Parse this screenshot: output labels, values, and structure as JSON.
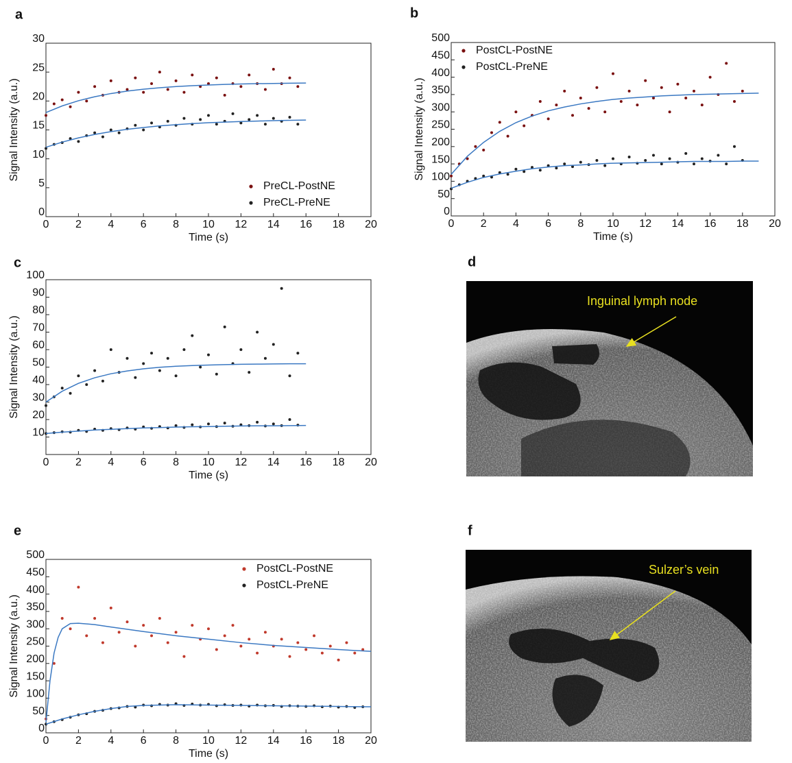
{
  "chart_data": [
    {
      "type": "scatter",
      "panel": "a",
      "xlabel": "Time (s)",
      "ylabel": "Signal Intensity (a.u.)",
      "xlim": [
        0,
        20
      ],
      "ylim": [
        0,
        30
      ],
      "xticks": [
        0,
        2,
        4,
        6,
        8,
        10,
        12,
        14,
        16,
        18,
        20
      ],
      "yticks": [
        0,
        5,
        10,
        15,
        20,
        25,
        30
      ],
      "legend": "lower right",
      "series": [
        {
          "name": "PreCL-PostNE",
          "color": "#7a1010",
          "x": [
            0,
            0.5,
            1,
            1.5,
            2,
            2.5,
            3,
            3.5,
            4,
            4.5,
            5,
            5.5,
            6,
            6.5,
            7,
            7.5,
            8,
            8.5,
            9,
            9.5,
            10,
            10.5,
            11,
            11.5,
            12,
            12.5,
            13,
            13.5,
            14,
            14.5,
            15,
            15.5
          ],
          "values": [
            17.5,
            19.5,
            20.2,
            19,
            21.5,
            20,
            22.5,
            21,
            23.5,
            21.5,
            22,
            24,
            21.5,
            23,
            25,
            22,
            23.5,
            21.5,
            24.5,
            22.5,
            23,
            24,
            21,
            23,
            22.5,
            24.5,
            23,
            22,
            25.5,
            23,
            24,
            22.5
          ]
        },
        {
          "name": "PreCL-PreNE",
          "color": "#222222",
          "x": [
            0,
            0.5,
            1,
            1.5,
            2,
            2.5,
            3,
            3.5,
            4,
            4.5,
            5,
            5.5,
            6,
            6.5,
            7,
            7.5,
            8,
            8.5,
            9,
            9.5,
            10,
            10.5,
            11,
            11.5,
            12,
            12.5,
            13,
            13.5,
            14,
            14.5,
            15,
            15.5
          ],
          "values": [
            11.8,
            12.5,
            12.8,
            13.5,
            13,
            14,
            14.5,
            13.8,
            15,
            14.5,
            15.2,
            15.8,
            15,
            16.2,
            15.5,
            16.5,
            15.8,
            17,
            16,
            16.8,
            17.5,
            16,
            16.5,
            17.8,
            16.2,
            16.8,
            17.5,
            16,
            17,
            16.5,
            17.2,
            16
          ]
        },
        {
          "type": "line",
          "color": "#3a78c2",
          "x": [
            0,
            1,
            2,
            3,
            4,
            5,
            6,
            7,
            8,
            9,
            10,
            11,
            12,
            13,
            14,
            15,
            16
          ],
          "values": [
            18.0,
            19.15,
            20.05,
            20.74,
            21.29,
            21.71,
            22.04,
            22.29,
            22.5,
            22.65,
            22.77,
            22.87,
            22.94,
            23.0,
            23.04,
            23.08,
            23.11
          ]
        },
        {
          "type": "line",
          "color": "#3a78c2",
          "x": [
            0,
            1,
            2,
            3,
            4,
            5,
            6,
            7,
            8,
            9,
            10,
            11,
            12,
            13,
            14,
            15,
            16
          ],
          "values": [
            12.0,
            12.89,
            13.62,
            14.21,
            14.7,
            15.1,
            15.42,
            15.69,
            15.91,
            16.09,
            16.24,
            16.35,
            16.45,
            16.53,
            16.6,
            16.66,
            16.7
          ]
        }
      ]
    },
    {
      "type": "scatter",
      "panel": "b",
      "xlabel": "Time (s)",
      "ylabel": "Signal Intensity (a.u.)",
      "xlim": [
        0,
        20
      ],
      "ylim": [
        0,
        500
      ],
      "xticks": [
        0,
        2,
        4,
        6,
        8,
        10,
        12,
        14,
        16,
        18,
        20
      ],
      "yticks": [
        0,
        50,
        100,
        150,
        200,
        250,
        300,
        350,
        400,
        450,
        500
      ],
      "legend": "upper left",
      "series": [
        {
          "name": "PostCL-PostNE",
          "color": "#7a1010",
          "x": [
            0,
            0.5,
            1,
            1.5,
            2,
            2.5,
            3,
            3.5,
            4,
            4.5,
            5,
            5.5,
            6,
            6.5,
            7,
            7.5,
            8,
            8.5,
            9,
            9.5,
            10,
            10.5,
            11,
            11.5,
            12,
            12.5,
            13,
            13.5,
            14,
            14.5,
            15,
            15.5,
            16,
            16.5,
            17,
            17.5,
            18
          ],
          "values": [
            115,
            150,
            165,
            200,
            190,
            240,
            270,
            230,
            300,
            260,
            290,
            330,
            280,
            320,
            360,
            290,
            340,
            310,
            370,
            300,
            410,
            330,
            360,
            320,
            390,
            340,
            370,
            300,
            380,
            340,
            360,
            320,
            400,
            350,
            440,
            330,
            360
          ]
        },
        {
          "name": "PostCL-PreNE",
          "color": "#222222",
          "x": [
            0,
            0.5,
            1,
            1.5,
            2,
            2.5,
            3,
            3.5,
            4,
            4.5,
            5,
            5.5,
            6,
            6.5,
            7,
            7.5,
            8,
            8.5,
            9,
            9.5,
            10,
            10.5,
            11,
            11.5,
            12,
            12.5,
            13,
            13.5,
            14,
            14.5,
            15,
            15.5,
            16,
            16.5,
            17,
            17.5,
            18
          ],
          "values": [
            78,
            90,
            100,
            108,
            115,
            112,
            125,
            120,
            135,
            128,
            140,
            132,
            145,
            138,
            150,
            142,
            155,
            148,
            160,
            145,
            165,
            150,
            170,
            152,
            160,
            175,
            150,
            165,
            155,
            180,
            150,
            165,
            158,
            175,
            150,
            200,
            160
          ]
        },
        {
          "type": "line",
          "color": "#3a78c2",
          "x": [
            0,
            1,
            2,
            3,
            4,
            5,
            6,
            7,
            8,
            9,
            10,
            11,
            12,
            13,
            14,
            15,
            16,
            17,
            18,
            19
          ],
          "values": [
            120,
            172,
            212,
            244,
            269,
            288,
            303,
            314,
            323,
            330,
            336,
            340,
            343,
            346,
            348,
            350,
            351,
            352,
            353,
            354
          ]
        },
        {
          "type": "line",
          "color": "#3a78c2",
          "x": [
            0,
            1,
            2,
            3,
            4,
            5,
            6,
            7,
            8,
            9,
            10,
            11,
            12,
            13,
            14,
            15,
            16,
            17,
            18,
            19
          ],
          "values": [
            80,
            97,
            111,
            121,
            129,
            136,
            141,
            145,
            147,
            150,
            152,
            153,
            154,
            155,
            156,
            157,
            157,
            157,
            158,
            158
          ]
        }
      ]
    },
    {
      "type": "scatter",
      "panel": "c",
      "xlabel": "Time (s)",
      "ylabel": "Signal Intensity (a.u.)",
      "xlim": [
        0,
        20
      ],
      "ylim": [
        0,
        100
      ],
      "xticks": [
        0,
        2,
        4,
        6,
        8,
        10,
        12,
        14,
        16,
        18,
        20
      ],
      "yticks": [
        10,
        20,
        30,
        40,
        50,
        60,
        70,
        80,
        90,
        100
      ],
      "series": [
        {
          "color": "#222222",
          "x": [
            0,
            0.5,
            1,
            1.5,
            2,
            2.5,
            3,
            3.5,
            4,
            4.5,
            5,
            5.5,
            6,
            6.5,
            7,
            7.5,
            8,
            8.5,
            9,
            9.5,
            10,
            10.5,
            11,
            11.5,
            12,
            12.5,
            13,
            13.5,
            14,
            14.5,
            15,
            15.5
          ],
          "values": [
            28,
            33,
            38,
            35,
            45,
            40,
            48,
            42,
            60,
            47,
            55,
            44,
            52,
            58,
            48,
            55,
            45,
            60,
            68,
            50,
            57,
            46,
            73,
            52,
            60,
            47,
            70,
            55,
            63,
            95,
            45,
            58
          ]
        },
        {
          "color": "#222222",
          "x": [
            0,
            0.5,
            1,
            1.5,
            2,
            2.5,
            3,
            3.5,
            4,
            4.5,
            5,
            5.5,
            6,
            6.5,
            7,
            7.5,
            8,
            8.5,
            9,
            9.5,
            10,
            10.5,
            11,
            11.5,
            12,
            12.5,
            13,
            13.5,
            14,
            14.5,
            15,
            15.5
          ],
          "values": [
            12,
            12.5,
            13,
            12.8,
            13.8,
            13.2,
            14.5,
            13.8,
            14.8,
            14.2,
            15.2,
            14.5,
            15.8,
            15,
            16,
            15.2,
            16.5,
            15.5,
            17,
            15.8,
            17.5,
            16,
            18,
            16.2,
            17,
            16.5,
            18.5,
            16.3,
            17.5,
            16.5,
            20,
            16.8
          ]
        },
        {
          "type": "line",
          "color": "#3a78c2",
          "x": [
            0,
            1,
            2,
            3,
            4,
            5,
            6,
            7,
            8,
            9,
            10,
            11,
            12,
            13,
            14,
            15,
            16
          ],
          "values": [
            30,
            36.2,
            40.7,
            43.9,
            46.2,
            47.8,
            49.0,
            49.9,
            50.5,
            50.9,
            51.2,
            51.4,
            51.6,
            51.7,
            51.8,
            51.9,
            51.9
          ]
        },
        {
          "type": "line",
          "color": "#3a78c2",
          "x": [
            0,
            1,
            2,
            3,
            4,
            5,
            6,
            7,
            8,
            9,
            10,
            11,
            12,
            13,
            14,
            15,
            16
          ],
          "values": [
            12,
            12.8,
            13.4,
            14.0,
            14.4,
            14.8,
            15.2,
            15.4,
            15.7,
            15.9,
            16.0,
            16.2,
            16.3,
            16.4,
            16.4,
            16.5,
            16.6
          ]
        }
      ]
    },
    {
      "type": "scatter",
      "panel": "e",
      "xlabel": "Time (s)",
      "ylabel": "Signal Intensity (a.u.)",
      "xlim": [
        0,
        20
      ],
      "ylim": [
        0,
        500
      ],
      "xticks": [
        0,
        2,
        4,
        6,
        8,
        10,
        12,
        14,
        16,
        18,
        20
      ],
      "yticks": [
        0,
        50,
        100,
        150,
        200,
        250,
        300,
        350,
        400,
        450,
        500
      ],
      "legend": "upper right",
      "series": [
        {
          "name": "PostCL-PostNE",
          "color": "#c0392b",
          "x": [
            0,
            0.5,
            1,
            1.5,
            2,
            2.5,
            3,
            3.5,
            4,
            4.5,
            5,
            5.5,
            6,
            6.5,
            7,
            7.5,
            8,
            8.5,
            9,
            9.5,
            10,
            10.5,
            11,
            11.5,
            12,
            12.5,
            13,
            13.5,
            14,
            14.5,
            15,
            15.5,
            16,
            16.5,
            17,
            17.5,
            18,
            18.5,
            19,
            19.5
          ],
          "values": [
            40,
            200,
            330,
            300,
            420,
            280,
            330,
            260,
            360,
            290,
            320,
            250,
            310,
            280,
            330,
            260,
            290,
            220,
            310,
            270,
            300,
            240,
            280,
            310,
            250,
            270,
            230,
            290,
            250,
            270,
            220,
            260,
            240,
            280,
            230,
            250,
            210,
            260,
            230,
            240
          ]
        },
        {
          "name": "PostCL-PreNE",
          "color": "#222222",
          "x": [
            0,
            0.5,
            1,
            1.5,
            2,
            2.5,
            3,
            3.5,
            4,
            4.5,
            5,
            5.5,
            6,
            6.5,
            7,
            7.5,
            8,
            8.5,
            9,
            9.5,
            10,
            10.5,
            11,
            11.5,
            12,
            12.5,
            13,
            13.5,
            14,
            14.5,
            15,
            15.5,
            16,
            16.5,
            17,
            17.5,
            18,
            18.5,
            19,
            19.5
          ],
          "values": [
            25,
            32,
            38,
            45,
            52,
            55,
            62,
            65,
            70,
            72,
            76,
            74,
            80,
            78,
            82,
            80,
            84,
            79,
            83,
            80,
            82,
            78,
            81,
            79,
            80,
            77,
            80,
            78,
            79,
            76,
            78,
            77,
            76,
            78,
            75,
            77,
            74,
            76,
            73,
            75
          ]
        },
        {
          "type": "line",
          "color": "#3a78c2",
          "x": [
            0,
            0.25,
            0.5,
            0.75,
            1,
            1.5,
            2,
            3,
            4,
            6,
            8,
            10,
            12,
            14,
            16,
            18,
            20
          ],
          "values": [
            30,
            150,
            230,
            275,
            300,
            315,
            316,
            312,
            305,
            292,
            280,
            270,
            260,
            252,
            246,
            240,
            235
          ]
        },
        {
          "type": "line",
          "color": "#3a78c2",
          "x": [
            0,
            1,
            2,
            3,
            4,
            5,
            6,
            7,
            8,
            10,
            12,
            14,
            16,
            18,
            20
          ],
          "values": [
            25,
            40,
            52,
            62,
            70,
            76,
            79,
            80,
            81,
            80,
            79,
            78,
            77,
            76,
            75
          ]
        }
      ]
    }
  ],
  "images": [
    {
      "panel": "d",
      "label": "Inguinal lymph node"
    },
    {
      "panel": "f",
      "label": "Sulzer’s vein"
    }
  ]
}
